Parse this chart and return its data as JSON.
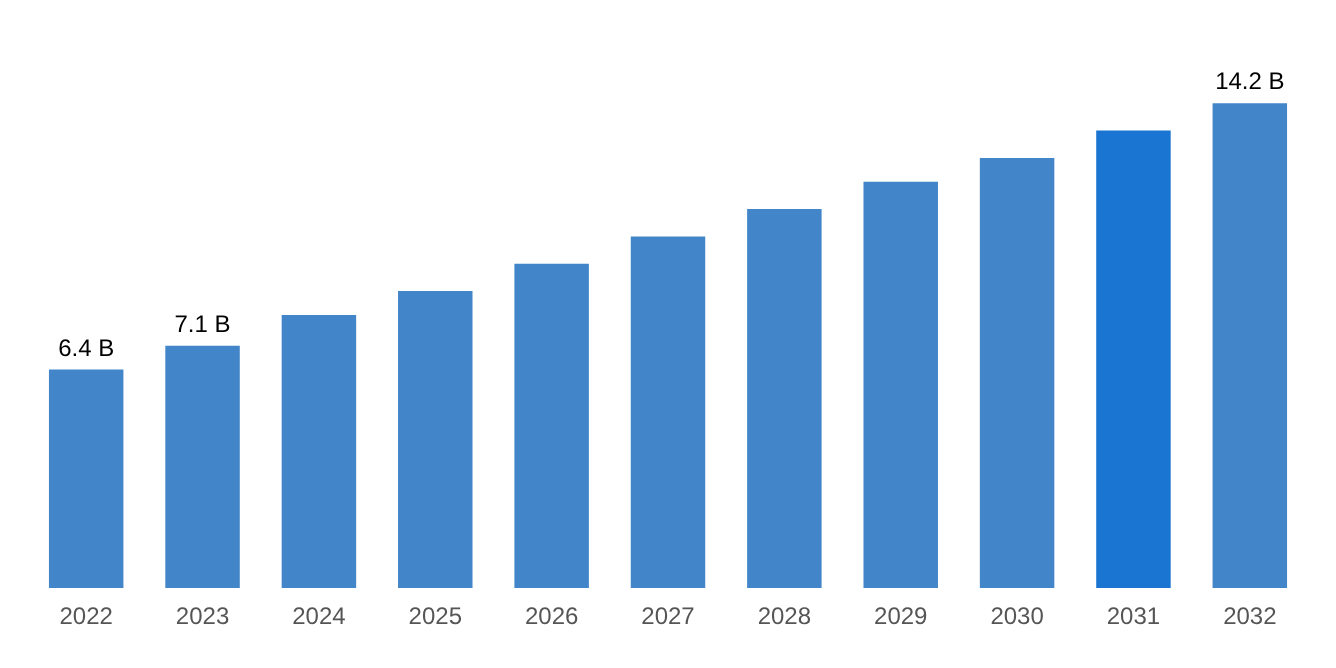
{
  "chart_data": {
    "type": "bar",
    "categories": [
      "2022",
      "2023",
      "2024",
      "2025",
      "2026",
      "2027",
      "2028",
      "2029",
      "2030",
      "2031",
      "2032"
    ],
    "values": [
      6.4,
      7.1,
      8.0,
      8.7,
      9.5,
      10.3,
      11.1,
      11.9,
      12.6,
      13.4,
      14.2
    ],
    "value_labels": [
      "6.4 B",
      "7.1 B",
      null,
      null,
      null,
      null,
      null,
      null,
      null,
      null,
      "14.2 B"
    ],
    "colors": [
      "#4285c8",
      "#4285c8",
      "#4285c8",
      "#4285c8",
      "#4285c8",
      "#4285c8",
      "#4285c8",
      "#4285c8",
      "#4285c8",
      "#1a75d2",
      "#4285c8"
    ],
    "tick_labels": "x"
  }
}
